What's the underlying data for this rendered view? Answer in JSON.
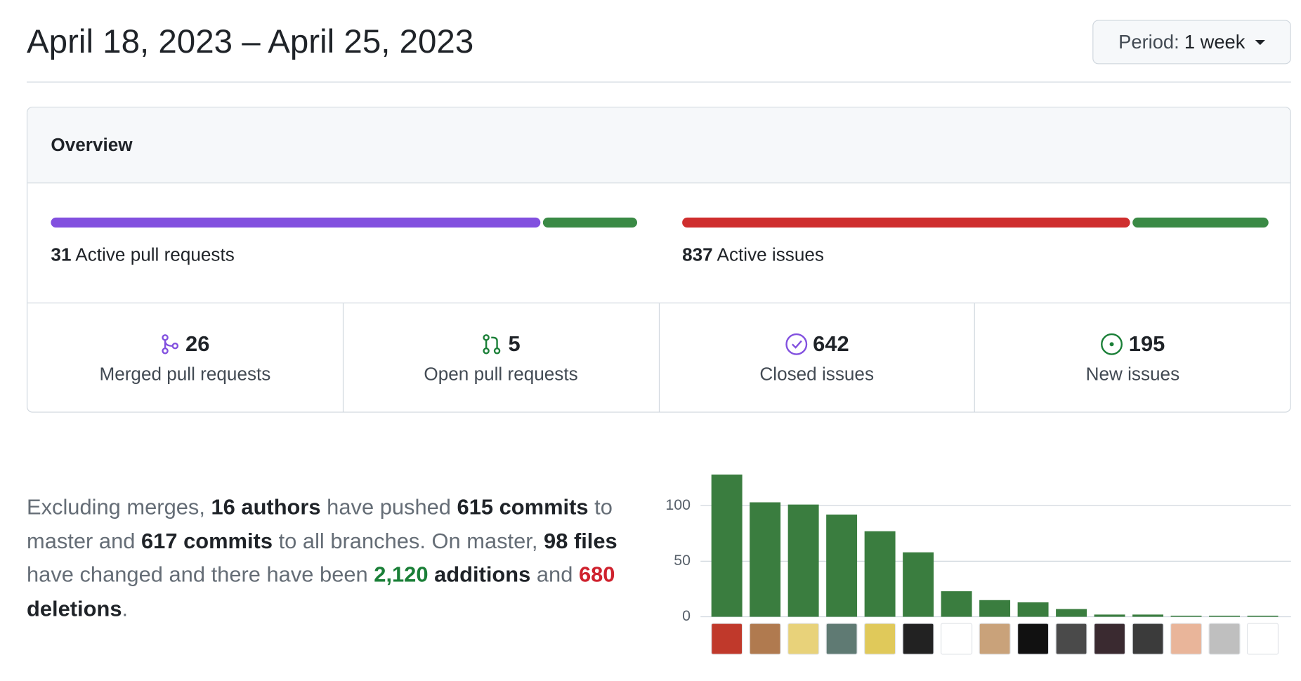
{
  "header": {
    "title": "April 18, 2023 – April 25, 2023",
    "period_label": "Period:",
    "period_value": "1 week"
  },
  "overview": {
    "title": "Overview",
    "pull_requests": {
      "count": 31,
      "label": "Active pull requests"
    },
    "issues": {
      "count": 837,
      "label": "Active issues"
    },
    "stats": [
      {
        "value": 26,
        "label": "Merged pull requests"
      },
      {
        "value": 5,
        "label": "Open pull requests"
      },
      {
        "value": 642,
        "label": "Closed issues"
      },
      {
        "value": 195,
        "label": "New issues"
      }
    ]
  },
  "summary": [
    "Excluding merges, ",
    "16 authors",
    " have pushed ",
    "615 commits",
    " to master and ",
    "617 commits",
    " to all branches. On master, ",
    "98 files",
    " have changed and there have been ",
    "2,120",
    " additions",
    " and ",
    "680",
    " deletions",
    "."
  ],
  "chart_data": {
    "type": "bar",
    "categories": [
      null,
      null,
      null,
      null,
      null,
      null,
      null,
      null,
      null,
      null,
      null,
      null,
      null,
      null,
      null
    ],
    "values": [
      128,
      103,
      101,
      92,
      77,
      58,
      23,
      15,
      13,
      7,
      2,
      2,
      1,
      1,
      1
    ],
    "color": "#3a7d3f",
    "ylim": [
      0,
      132
    ],
    "yticks": [
      0,
      50,
      100
    ],
    "grid": true
  }
}
